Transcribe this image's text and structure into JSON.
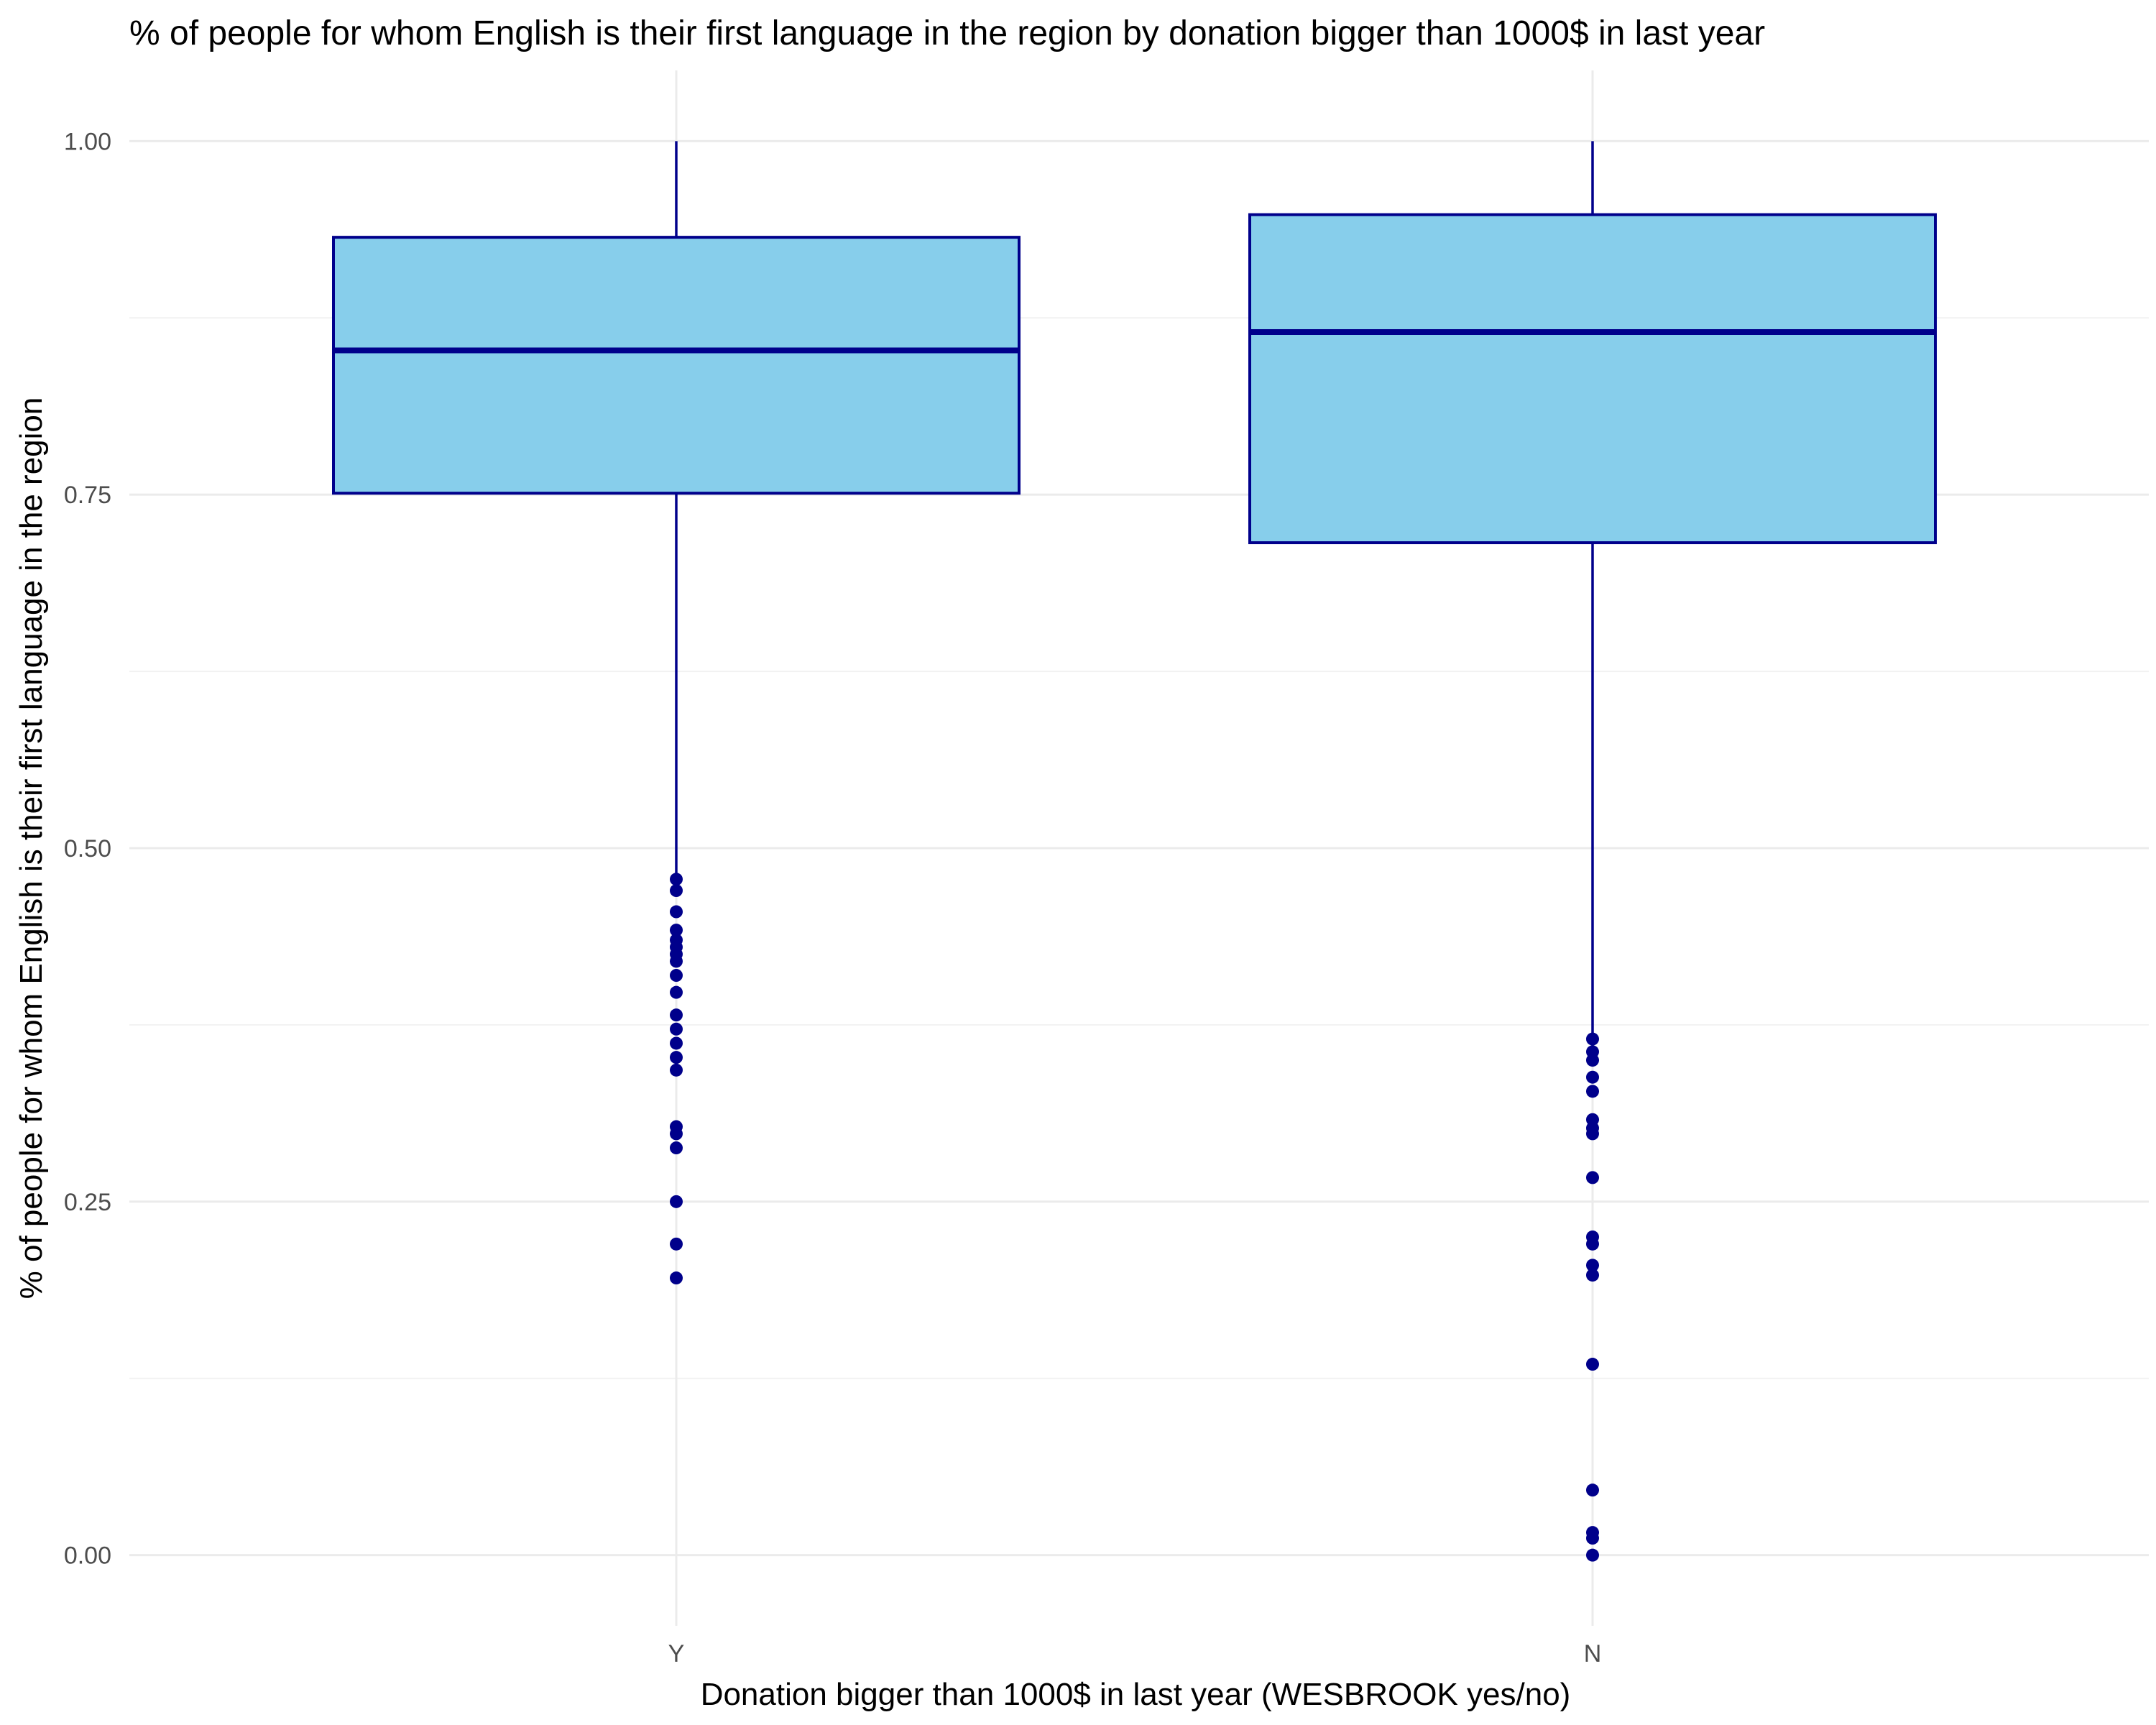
{
  "chart_data": {
    "type": "boxplot",
    "title": "% of people for whom English is their first language in the region by donation bigger than 1000$ in last year",
    "xlabel": "Donation bigger than 1000$ in last year (WESBROOK yes/no)",
    "ylabel": "% of people for whom English is their first language in the region",
    "categories": [
      "Y",
      "N"
    ],
    "ylim": [
      -0.05,
      1.05
    ],
    "yticks": [
      0.0,
      0.25,
      0.5,
      0.75,
      1.0
    ],
    "ytick_labels": [
      "0.00",
      "0.25",
      "0.50",
      "0.75",
      "1.00"
    ],
    "grid": true,
    "colors": {
      "box_fill": "#87CEEB",
      "box_stroke": "#00008B",
      "outlier": "#00008B"
    },
    "boxes": [
      {
        "category": "Y",
        "whisker_low": 0.478,
        "q1": 0.751,
        "median": 0.852,
        "q3": 0.932,
        "whisker_high": 1.0,
        "outliers": [
          0.478,
          0.47,
          0.455,
          0.442,
          0.435,
          0.43,
          0.425,
          0.42,
          0.41,
          0.398,
          0.382,
          0.372,
          0.362,
          0.352,
          0.343,
          0.303,
          0.298,
          0.288,
          0.25,
          0.22,
          0.196
        ]
      },
      {
        "category": "N",
        "whisker_low": 0.365,
        "q1": 0.716,
        "median": 0.865,
        "q3": 0.948,
        "whisker_high": 1.0,
        "outliers": [
          0.365,
          0.356,
          0.35,
          0.338,
          0.328,
          0.308,
          0.302,
          0.298,
          0.267,
          0.225,
          0.22,
          0.205,
          0.198,
          0.135,
          0.046,
          0.016,
          0.012,
          0.0
        ]
      }
    ]
  }
}
